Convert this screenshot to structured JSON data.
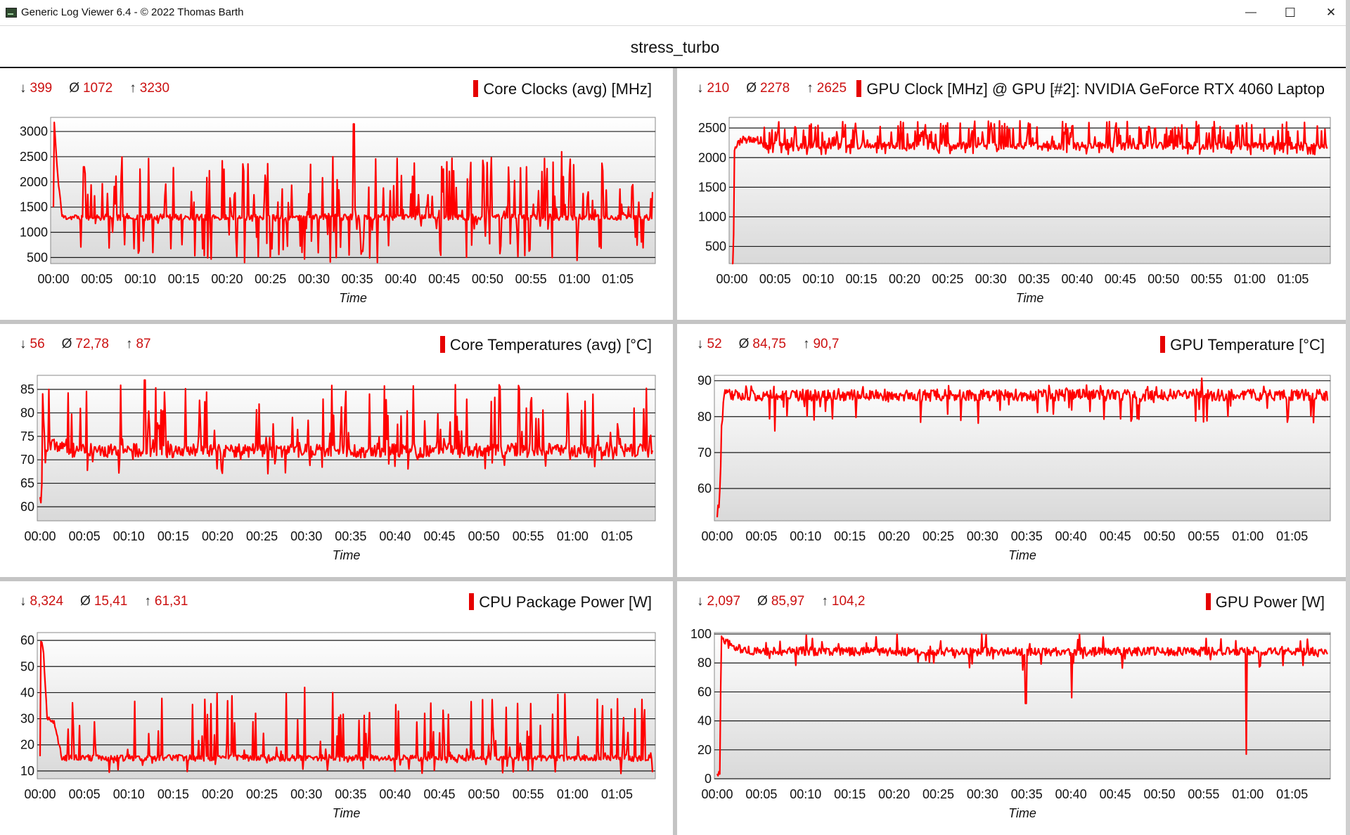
{
  "window": {
    "title": "Generic Log Viewer 6.4 - © 2022 Thomas Barth",
    "minimize_icon": "minimize-icon",
    "maximize_icon": "maximize-icon",
    "close_icon": "close-icon",
    "minimize_glyph": "—",
    "maximize_glyph": "☐",
    "close_glyph": "✕"
  },
  "page_title": "stress_turbo",
  "colors": {
    "series": "#ff0000",
    "stat_text": "#cc1111",
    "plot_bg_top": "#ffffff",
    "plot_bg_bottom": "#d9d9d9"
  },
  "chart_data": [
    {
      "type": "line",
      "title": "Core Clocks (avg) [MHz]",
      "xlabel": "Time",
      "stats": {
        "min": "399",
        "avg": "1072",
        "max": "3230"
      },
      "ylim": [
        380,
        3280
      ],
      "yticks": [
        500,
        1000,
        1500,
        2000,
        2500,
        3000
      ],
      "xticks": [
        "00:00",
        "00:05",
        "00:10",
        "00:15",
        "00:20",
        "00:25",
        "00:30",
        "00:35",
        "00:40",
        "00:45",
        "00:50",
        "00:55",
        "01:00",
        "01:05"
      ],
      "grid": true,
      "seed": 11,
      "n": 700,
      "key": [
        [
          0,
          1500
        ],
        [
          0.1,
          3200
        ],
        [
          0.4,
          2300
        ],
        [
          1,
          1300
        ],
        [
          69,
          1300
        ]
      ],
      "spikes": [
        [
          34.6,
          3150
        ],
        [
          58.5,
          2600
        ],
        [
          59.5,
          2450
        ],
        [
          3.5,
          2300
        ]
      ],
      "base": 1300,
      "noise": 60,
      "prob": 0.3,
      "range": [
        400,
        2500
      ],
      "clip": [
        399,
        3230
      ]
    },
    {
      "type": "line",
      "title": "GPU Clock [MHz] @ GPU [#2]: NVIDIA GeForce RTX 4060 Laptop",
      "xlabel": "Time",
      "stats": {
        "min": "210",
        "avg": "2278",
        "max": "2625"
      },
      "ylim": [
        210,
        2680
      ],
      "yticks": [
        500,
        1000,
        1500,
        2000,
        2500
      ],
      "xticks": [
        "00:00",
        "00:05",
        "00:10",
        "00:15",
        "00:20",
        "00:25",
        "00:30",
        "00:35",
        "00:40",
        "00:45",
        "00:50",
        "00:55",
        "01:00",
        "01:05"
      ],
      "grid": true,
      "seed": 23,
      "n": 700,
      "key": [
        [
          0,
          220
        ],
        [
          0.1,
          250
        ],
        [
          0.2,
          700
        ],
        [
          0.3,
          2200
        ],
        [
          0.6,
          2200
        ],
        [
          1,
          2300
        ],
        [
          69,
          2300
        ]
      ],
      "spikes": [],
      "base": 2200,
      "noise": 60,
      "prob": 0.45,
      "range": [
        2050,
        2625
      ],
      "clip": [
        210,
        2625
      ]
    },
    {
      "type": "line",
      "title": "Core Temperatures (avg) [°C]",
      "xlabel": "Time",
      "stats": {
        "min": "56",
        "avg": "72,78",
        "max": "87"
      },
      "ylim": [
        57,
        88
      ],
      "yticks": [
        60,
        65,
        70,
        75,
        80,
        85
      ],
      "xticks": [
        "00:00",
        "00:05",
        "00:10",
        "00:15",
        "00:20",
        "00:25",
        "00:30",
        "00:35",
        "00:40",
        "00:45",
        "00:50",
        "00:55",
        "01:00",
        "01:05"
      ],
      "grid": true,
      "seed": 37,
      "n": 700,
      "key": [
        [
          0,
          62
        ],
        [
          0.15,
          58
        ],
        [
          0.3,
          84
        ],
        [
          0.6,
          70
        ],
        [
          1,
          73
        ],
        [
          69,
          72
        ]
      ],
      "spikes": [
        [
          11.8,
          87
        ],
        [
          1,
          85
        ]
      ],
      "base": 72,
      "noise": 1.5,
      "prob": 0.25,
      "range": [
        67,
        86
      ],
      "clip": [
        56,
        87
      ]
    },
    {
      "type": "line",
      "title": "GPU Temperature [°C]",
      "xlabel": "Time",
      "stats": {
        "min": "52",
        "avg": "84,75",
        "max": "90,7"
      },
      "ylim": [
        51,
        91.5
      ],
      "yticks": [
        60,
        70,
        80,
        90
      ],
      "xticks": [
        "00:00",
        "00:05",
        "00:10",
        "00:15",
        "00:20",
        "00:25",
        "00:30",
        "00:35",
        "00:40",
        "00:45",
        "00:50",
        "00:55",
        "01:00",
        "01:05"
      ],
      "grid": true,
      "seed": 53,
      "n": 700,
      "key": [
        [
          0,
          52.5
        ],
        [
          0.3,
          58
        ],
        [
          0.5,
          78
        ],
        [
          0.8,
          86
        ],
        [
          2,
          86
        ],
        [
          69,
          86
        ]
      ],
      "spikes": [
        [
          54.8,
          90.7
        ],
        [
          6.5,
          76
        ]
      ],
      "base": 86,
      "noise": 1.6,
      "prob": 0.12,
      "range": [
        78,
        89
      ],
      "clip": [
        52,
        90.7
      ]
    },
    {
      "type": "line",
      "title": "CPU Package Power [W]",
      "xlabel": "Time",
      "stats": {
        "min": "8,324",
        "avg": "15,41",
        "max": "61,31"
      },
      "ylim": [
        7,
        63
      ],
      "yticks": [
        10,
        20,
        30,
        40,
        50,
        60
      ],
      "xticks": [
        "00:00",
        "00:05",
        "00:10",
        "00:15",
        "00:20",
        "00:25",
        "00:30",
        "00:35",
        "00:40",
        "00:45",
        "00:50",
        "00:55",
        "01:00",
        "01:05"
      ],
      "grid": true,
      "seed": 71,
      "n": 700,
      "key": [
        [
          0,
          15
        ],
        [
          0.1,
          61
        ],
        [
          0.4,
          55
        ],
        [
          0.8,
          30
        ],
        [
          1.6,
          28
        ],
        [
          2.5,
          15
        ],
        [
          69,
          15
        ]
      ],
      "spikes": [
        [
          29.8,
          42
        ],
        [
          33,
          40
        ]
      ],
      "base": 15,
      "noise": 1.2,
      "prob": 0.22,
      "range": [
        9,
        40
      ],
      "clip": [
        8.324,
        61.31
      ]
    },
    {
      "type": "line",
      "title": "GPU Power [W]",
      "xlabel": "Time",
      "stats": {
        "min": "2,097",
        "avg": "85,97",
        "max": "104,2"
      },
      "ylim": [
        0,
        101
      ],
      "yticks": [
        0,
        20,
        40,
        60,
        80,
        100
      ],
      "xticks": [
        "00:00",
        "00:05",
        "00:10",
        "00:15",
        "00:20",
        "00:25",
        "00:30",
        "00:35",
        "00:40",
        "00:45",
        "00:50",
        "00:55",
        "01:00",
        "01:05"
      ],
      "grid": true,
      "seed": 97,
      "n": 700,
      "key": [
        [
          0,
          3
        ],
        [
          0.3,
          3
        ],
        [
          0.45,
          99
        ],
        [
          0.9,
          95
        ],
        [
          2,
          90
        ],
        [
          69,
          88
        ]
      ],
      "spikes": [
        [
          34.9,
          52
        ],
        [
          40.1,
          56
        ],
        [
          59.8,
          17
        ],
        [
          29.9,
          100
        ]
      ],
      "base": 88,
      "noise": 3,
      "prob": 0.1,
      "range": [
        75,
        100
      ],
      "clip": [
        2.097,
        100
      ]
    }
  ]
}
